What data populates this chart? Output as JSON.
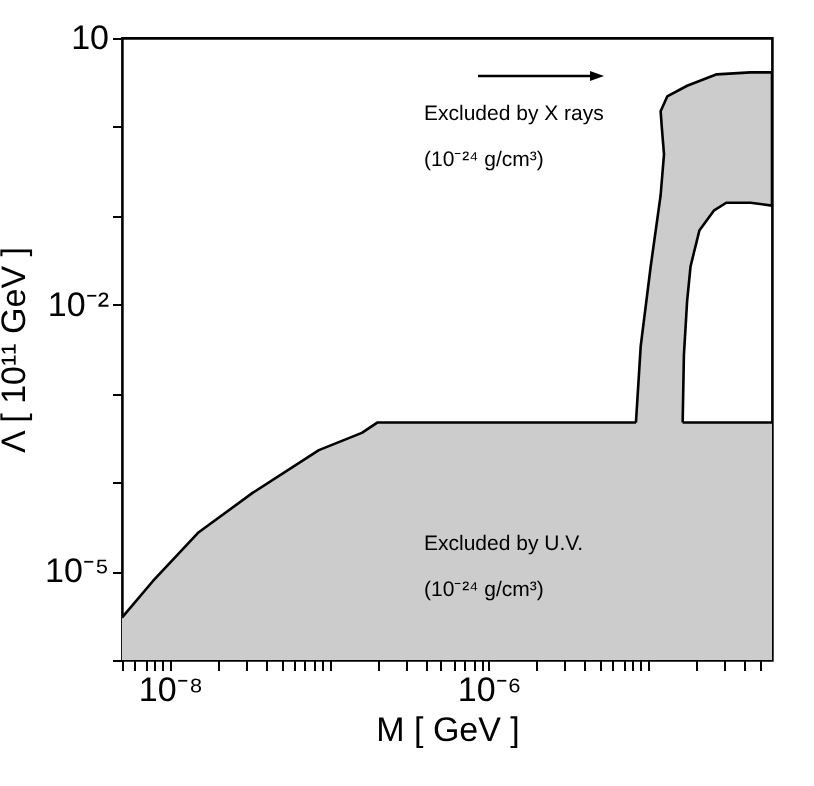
{
  "chart_data": {
    "type": "area",
    "xlabel": "M [ GeV ]",
    "ylabel": "Λ [ 10¹¹ GeV ]",
    "log": "xy",
    "grid": false,
    "xlim": [
      5e-09,
      6e-05
    ],
    "ylim": [
      1e-06,
      10
    ],
    "xticks": [
      {
        "value": 5e-09,
        "label": null
      },
      {
        "value": 6e-09,
        "label": null
      },
      {
        "value": 7e-09,
        "label": null
      },
      {
        "value": 8e-09,
        "label": null
      },
      {
        "value": 9e-09,
        "label": null
      },
      {
        "value": 1e-08,
        "label": "10⁻⁸"
      },
      {
        "value": 2e-08,
        "label": null
      },
      {
        "value": 3e-08,
        "label": null
      },
      {
        "value": 4e-08,
        "label": null
      },
      {
        "value": 5e-08,
        "label": null
      },
      {
        "value": 6e-08,
        "label": null
      },
      {
        "value": 7e-08,
        "label": null
      },
      {
        "value": 8e-08,
        "label": null
      },
      {
        "value": 9e-08,
        "label": null
      },
      {
        "value": 1e-07,
        "label": null
      },
      {
        "value": 2e-07,
        "label": null
      },
      {
        "value": 3e-07,
        "label": null
      },
      {
        "value": 4e-07,
        "label": null
      },
      {
        "value": 5e-07,
        "label": null
      },
      {
        "value": 6e-07,
        "label": null
      },
      {
        "value": 7e-07,
        "label": null
      },
      {
        "value": 8e-07,
        "label": null
      },
      {
        "value": 9e-07,
        "label": null
      },
      {
        "value": 1e-06,
        "label": "10⁻⁶"
      },
      {
        "value": 2e-06,
        "label": null
      },
      {
        "value": 3e-06,
        "label": null
      },
      {
        "value": 4e-06,
        "label": null
      },
      {
        "value": 5e-06,
        "label": null
      },
      {
        "value": 6e-06,
        "label": null
      },
      {
        "value": 7e-06,
        "label": null
      },
      {
        "value": 8e-06,
        "label": null
      },
      {
        "value": 9e-06,
        "label": null
      },
      {
        "value": 1e-05,
        "label": null
      },
      {
        "value": 2e-05,
        "label": null
      },
      {
        "value": 3e-05,
        "label": null
      },
      {
        "value": 4e-05,
        "label": null
      },
      {
        "value": 5e-05,
        "label": null
      }
    ],
    "yticks": [
      {
        "value": 1e-06,
        "label": null
      },
      {
        "value": 1e-05,
        "label": "10⁻⁵"
      },
      {
        "value": 0.0001,
        "label": null
      },
      {
        "value": 0.001,
        "label": null
      },
      {
        "value": 0.01,
        "label": "10⁻²"
      },
      {
        "value": 0.1,
        "label": null
      },
      {
        "value": 1,
        "label": null
      },
      10
    ],
    "series": [
      {
        "color": "#cccccc",
        "x": [
          5e-09,
          7.8e-09,
          1.5e-08,
          3.3e-08,
          8.6e-08,
          1.6e-07,
          2e-07,
          6e-05
        ],
        "values": [
          3e-06,
          7.7e-06,
          2.7e-05,
          7.6e-05,
          0.00023,
          0.00036,
          0.00047,
          0.00047
        ]
      },
      {
        "color": "#cccccc",
        "x": [
          8.4e-06,
          9e-06,
          1.04e-05,
          1.2e-05,
          1.26e-05,
          1.22e-05,
          1.2e-05,
          1.32e-05,
          1.76e-05,
          2.7e-05,
          4.4e-05,
          6e-05,
          6e-05,
          4.4e-05,
          3.1e-05,
          2.6e-05,
          2.1e-05,
          1.85e-05,
          1.76e-05,
          1.68e-05,
          1.65e-05
        ],
        "values": [
          0.00047,
          0.0034,
          0.027,
          0.17,
          0.49,
          1.0,
          1.5,
          2.2,
          2.9,
          3.9,
          4.1,
          4.1,
          0.13,
          0.14,
          0.14,
          0.115,
          0.068,
          0.027,
          0.011,
          0.0027,
          0.00047
        ]
      }
    ],
    "annotations": [
      "Excluded by X rays\n(10⁻²⁴  g/cm³)",
      "Excluded by U.V.\n(10⁻²⁴  g/cm³)"
    ]
  }
}
